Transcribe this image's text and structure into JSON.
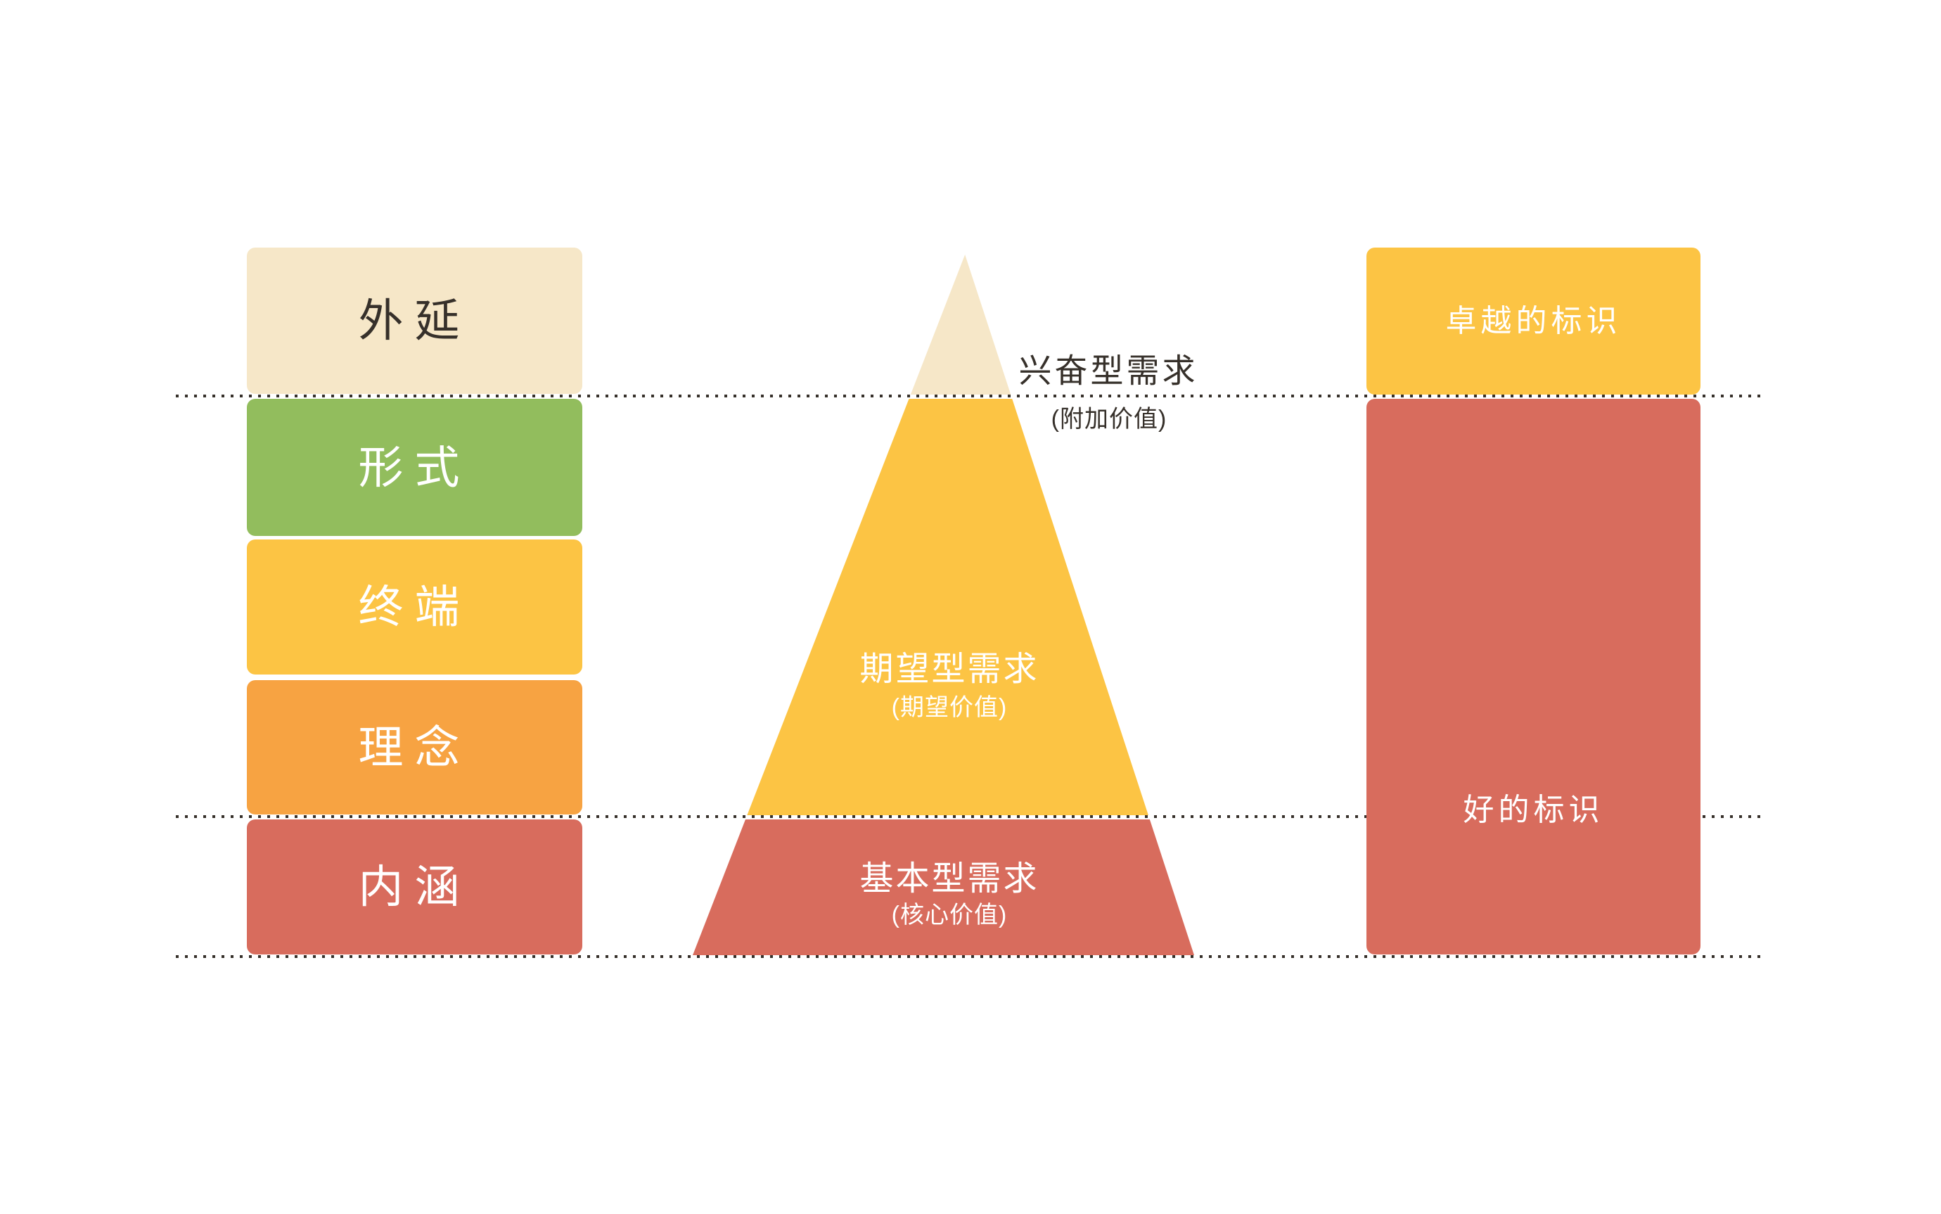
{
  "palette": {
    "cream": "#F6E7C8",
    "green": "#92BD5D",
    "yellow": "#FCC444",
    "orange": "#F7A342",
    "red": "#D86C5D",
    "dark_text": "#36302A",
    "light_text": "#FFFFFF",
    "dot": "#36302A",
    "background": "#FFFFFF"
  },
  "left_stack": {
    "items": [
      {
        "label": "外延"
      },
      {
        "label": "形式"
      },
      {
        "label": "终端"
      },
      {
        "label": "理念"
      },
      {
        "label": "内涵"
      }
    ]
  },
  "pyramid": {
    "levels": [
      {
        "title": "兴奋型需求",
        "subtitle": "(附加价值)"
      },
      {
        "title": "期望型需求",
        "subtitle": "(期望价值)"
      },
      {
        "title": "基本型需求",
        "subtitle": "(核心价值)"
      }
    ]
  },
  "right_column": {
    "top_label": "卓越的标识",
    "bottom_label": "好的标识"
  }
}
